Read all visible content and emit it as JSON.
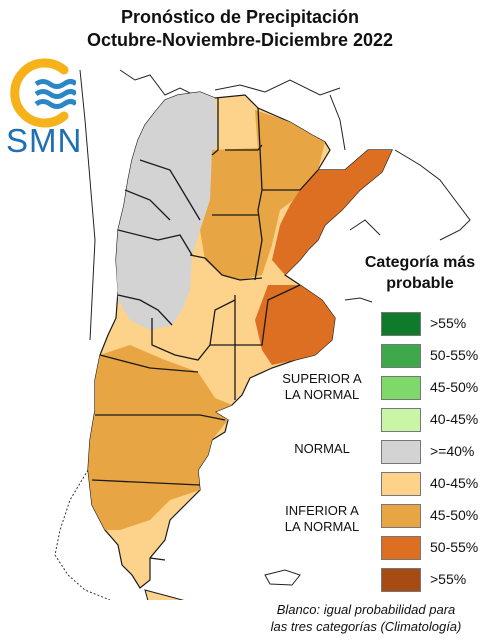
{
  "header": {
    "title_line1": "Pronóstico de Precipitación",
    "title_line2": "Octubre-Noviembre-Diciembre 2022"
  },
  "logo": {
    "text": "SMN",
    "icon": "smn-logo-icon"
  },
  "legend": {
    "title_line1": "Categoría más",
    "title_line2": "probable",
    "items": [
      {
        "label": ">55%",
        "color": "#0f7a2c",
        "group": "superior"
      },
      {
        "label": "50-55%",
        "color": "#3ea84b",
        "group": "superior"
      },
      {
        "label": "45-50%",
        "color": "#7fd86a",
        "group": "superior"
      },
      {
        "label": "40-45%",
        "color": "#c9f5a6",
        "group": "superior"
      },
      {
        "label": ">=40%",
        "color": "#d3d3d3",
        "group": "normal"
      },
      {
        "label": "40-45%",
        "color": "#fdd28a",
        "group": "inferior"
      },
      {
        "label": "45-50%",
        "color": "#e8a544",
        "group": "inferior"
      },
      {
        "label": "50-55%",
        "color": "#dc6f22",
        "group": "inferior"
      },
      {
        "label": ">55%",
        "color": "#a64b14",
        "group": "inferior"
      }
    ],
    "superior_line1": "SUPERIOR A",
    "superior_line2": "LA NORMAL",
    "normal_label": "NORMAL",
    "inferior_line1": "INFERIOR A",
    "inferior_line2": "LA NORMAL"
  },
  "footnote": {
    "line1": "Blanco: igual probabilidad para",
    "line2": "las tres categorías (Climatología)"
  },
  "map_colors": {
    "normal": "#d3d3d3",
    "inferior_40_45": "#fdd28a",
    "inferior_45_50": "#e8a544",
    "inferior_50_55": "#dc6f22",
    "border": "#1a1a1a"
  }
}
